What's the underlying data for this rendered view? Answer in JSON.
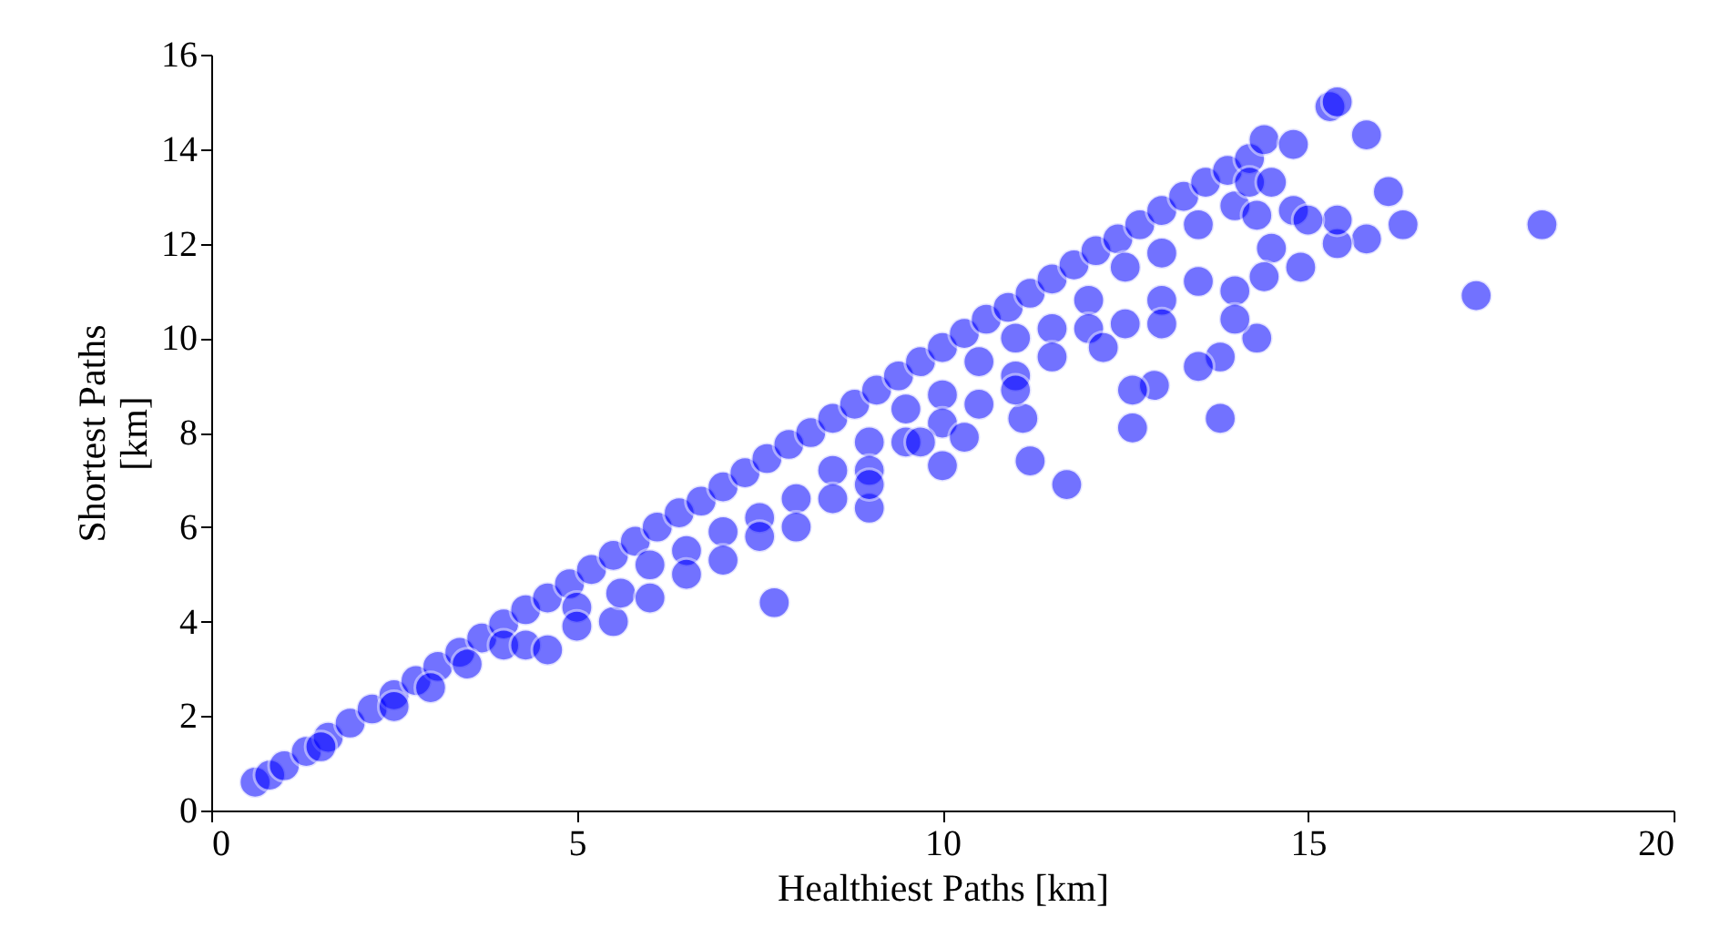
{
  "chart_data": {
    "type": "scatter",
    "xlabel": "Healthiest Paths [km]",
    "ylabel": "Shortest Paths\n[km]",
    "xlim": [
      0,
      20
    ],
    "ylim": [
      0,
      16
    ],
    "xticks": [
      0,
      5,
      10,
      15,
      20
    ],
    "yticks": [
      0,
      2,
      4,
      6,
      8,
      10,
      12,
      14,
      16
    ],
    "grid": false,
    "marker": "circle",
    "series": [
      {
        "color": "#0000ff",
        "x": [
          0.6,
          0.8,
          1.0,
          1.3,
          1.6,
          1.9,
          2.2,
          2.5,
          2.8,
          3.1,
          3.4,
          3.7,
          4.0,
          4.3,
          4.6,
          4.9,
          5.2,
          5.5,
          5.8,
          6.1,
          6.4,
          6.7,
          7.0,
          7.3,
          7.6,
          7.9,
          8.2,
          8.5,
          8.8,
          9.1,
          9.4,
          9.7,
          10.0,
          10.3,
          10.6,
          10.9,
          11.2,
          11.5,
          11.8,
          12.1,
          12.4,
          12.7,
          13.0,
          13.3,
          13.6,
          13.9,
          14.2,
          14.4,
          1.5,
          2.5,
          3.0,
          3.5,
          4.0,
          4.3,
          4.6,
          5.0,
          5.0,
          5.5,
          5.6,
          6.0,
          6.0,
          6.5,
          6.5,
          7.0,
          7.0,
          7.5,
          7.5,
          8.0,
          8.0,
          8.5,
          8.5,
          9.0,
          9.0,
          9.5,
          9.5,
          10.0,
          10.0,
          10.5,
          10.5,
          11.0,
          11.0,
          11.5,
          11.5,
          12.0,
          12.0,
          12.5,
          12.5,
          13.0,
          13.0,
          13.5,
          13.5,
          14.0,
          14.0,
          14.2,
          14.5,
          14.8,
          18.2,
          17.3,
          16.3,
          16.1,
          15.8,
          15.3,
          15.4,
          15.8,
          15.4,
          15.4,
          15.0,
          14.9,
          14.8,
          14.5,
          14.4,
          14.3,
          14.3,
          14.0,
          13.8,
          13.8,
          13.5,
          13.0,
          12.9,
          12.6,
          12.6,
          12.2,
          11.7,
          11.2,
          11.1,
          10.0,
          9.7,
          7.7,
          9.0,
          9.0,
          10.3,
          11.0
        ],
        "values": [
          0.6,
          0.75,
          0.95,
          1.25,
          1.55,
          1.85,
          2.15,
          2.45,
          2.75,
          3.05,
          3.35,
          3.65,
          3.95,
          4.25,
          4.5,
          4.8,
          5.1,
          5.4,
          5.7,
          6.0,
          6.3,
          6.55,
          6.85,
          7.15,
          7.45,
          7.75,
          8.0,
          8.3,
          8.6,
          8.9,
          9.2,
          9.5,
          9.8,
          10.1,
          10.4,
          10.65,
          10.95,
          11.25,
          11.55,
          11.85,
          12.1,
          12.4,
          12.7,
          13.0,
          13.3,
          13.55,
          13.8,
          14.2,
          1.35,
          2.2,
          2.6,
          3.1,
          3.5,
          3.5,
          3.4,
          4.3,
          3.9,
          4.0,
          4.6,
          4.5,
          5.2,
          5.5,
          5.0,
          5.9,
          5.3,
          6.2,
          5.8,
          6.6,
          6.0,
          7.2,
          6.6,
          7.8,
          7.2,
          8.5,
          7.8,
          8.8,
          8.2,
          9.5,
          8.6,
          10.0,
          9.2,
          10.2,
          9.6,
          10.8,
          10.2,
          11.5,
          10.3,
          11.8,
          10.8,
          12.4,
          11.2,
          12.8,
          11.0,
          13.3,
          13.3,
          12.7,
          12.4,
          10.9,
          12.4,
          13.1,
          14.3,
          14.9,
          15.0,
          12.1,
          12.0,
          12.5,
          12.5,
          11.5,
          14.1,
          11.9,
          11.3,
          12.6,
          10.0,
          10.4,
          8.3,
          9.6,
          9.4,
          10.3,
          9.0,
          8.9,
          8.1,
          9.8,
          6.9,
          7.4,
          8.3,
          7.3,
          7.8,
          4.4,
          6.4,
          6.9,
          7.9,
          8.9
        ]
      }
    ]
  }
}
